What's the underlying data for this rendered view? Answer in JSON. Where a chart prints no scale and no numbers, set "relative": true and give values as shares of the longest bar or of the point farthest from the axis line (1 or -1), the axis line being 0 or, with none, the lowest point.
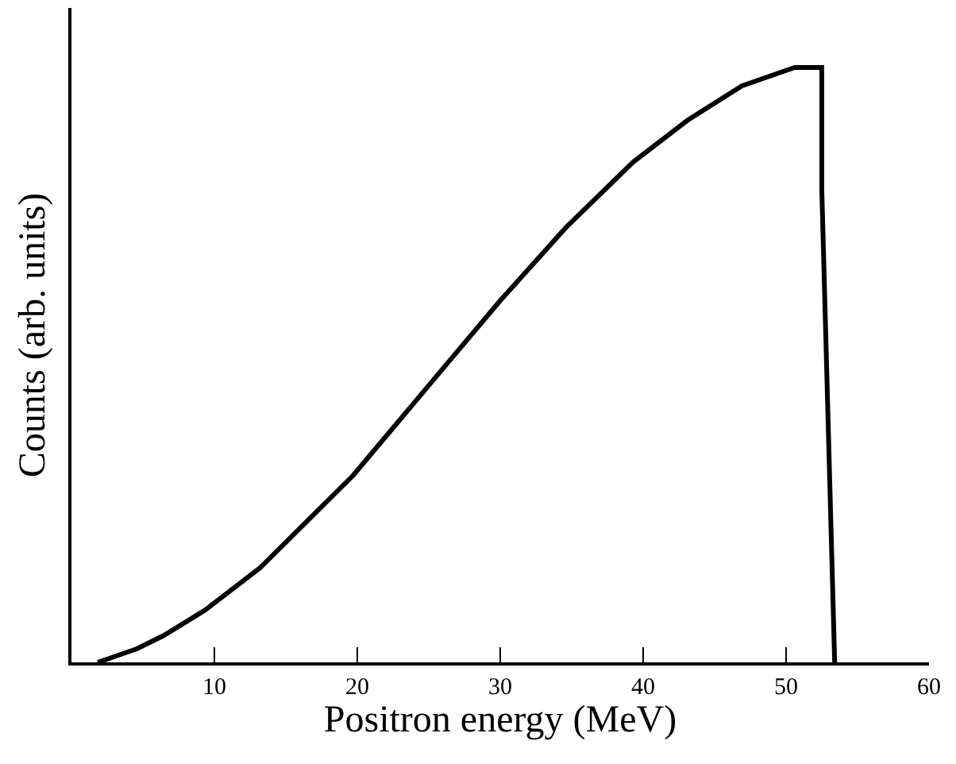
{
  "chart_data": {
    "type": "line",
    "xlabel": "Positron energy (MeV)",
    "ylabel": "Counts (arb. units)",
    "relative": true,
    "xlim": [
      0,
      60
    ],
    "xticks": [
      10,
      20,
      30,
      40,
      50,
      60
    ],
    "series": [
      {
        "color": "#000000",
        "x": [
          1.85,
          4.6,
          6.45,
          9.36,
          13.2,
          19.7,
          26.0,
          30.0,
          34.6,
          39.3,
          43.1,
          46.9,
          50.6,
          52.5,
          52.5,
          53.4
        ],
        "values": [
          0,
          0.023,
          0.045,
          0.088,
          0.159,
          0.314,
          0.494,
          0.608,
          0.731,
          0.841,
          0.911,
          0.969,
          1.0,
          1.0,
          0.794,
          0
        ]
      }
    ]
  }
}
